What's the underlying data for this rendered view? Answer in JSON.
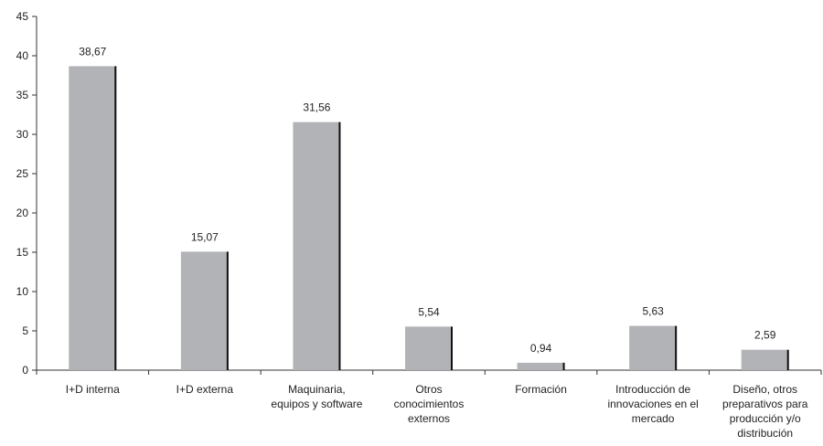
{
  "chart_data": {
    "type": "bar",
    "categories": [
      [
        "I+D interna"
      ],
      [
        "I+D externa"
      ],
      [
        "Maquinaria,",
        "equipos y software"
      ],
      [
        "Otros",
        "conocimientos",
        "externos"
      ],
      [
        "Formación"
      ],
      [
        "Introducción de",
        "innovaciones en el",
        "mercado"
      ],
      [
        "Diseño, otros",
        "preparativos para",
        "producción y/o",
        "distribución"
      ]
    ],
    "values": [
      38.67,
      15.07,
      31.56,
      5.54,
      0.94,
      5.63,
      2.59
    ],
    "value_labels": [
      "38,67",
      "15,07",
      "31,56",
      "5,54",
      "0,94",
      "5,63",
      "2,59"
    ],
    "ylim": [
      0,
      45
    ],
    "yticks": [
      0,
      5,
      10,
      15,
      20,
      25,
      30,
      35,
      40,
      45
    ],
    "title": "",
    "xlabel": "",
    "ylabel": "",
    "grid": false,
    "colors": {
      "bar": "#b2b3b6",
      "bar_shadow": "#111111",
      "axis": "#333333",
      "text": "#222222"
    }
  }
}
